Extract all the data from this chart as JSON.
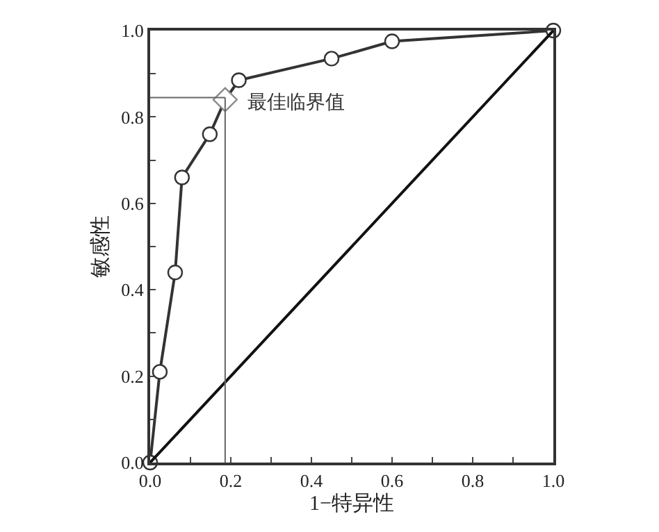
{
  "chart_data": {
    "type": "line",
    "xlabel": "1−特异性",
    "ylabel": "敏感性",
    "xlim": [
      0,
      1
    ],
    "ylim": [
      0,
      1
    ],
    "xticks": [
      {
        "value": 0,
        "label": "0.0"
      },
      {
        "value": 0.1,
        "label": null
      },
      0.2,
      {
        "value": 0.3,
        "label": null
      },
      0.4,
      {
        "value": 0.5,
        "label": null
      },
      0.6,
      {
        "value": 0.7,
        "label": null
      },
      0.8,
      {
        "value": 0.9,
        "label": null
      },
      {
        "value": 1,
        "label": "1.0"
      }
    ],
    "yticks": [
      {
        "value": 0,
        "label": "0.0"
      },
      {
        "value": 0.1,
        "label": null
      },
      0.2,
      {
        "value": 0.3,
        "label": null
      },
      0.4,
      {
        "value": 0.5,
        "label": null
      },
      0.6,
      {
        "value": 0.7,
        "label": null
      },
      0.8,
      {
        "value": 0.9,
        "label": null
      },
      {
        "value": 1,
        "label": "1.0"
      }
    ],
    "series": [
      {
        "color": "#333333",
        "marker": "circle",
        "x": [
          0,
          0.024,
          0.062,
          0.079,
          0.148,
          0.186,
          0.22,
          0.45,
          0.6,
          1
        ],
        "values": [
          0,
          0.21,
          0.44,
          0.66,
          0.76,
          0.84,
          0.885,
          0.935,
          0.975,
          1
        ]
      },
      {
        "type": "scatter",
        "color": "#888888",
        "marker": "diamond",
        "x": [
          0.186
        ],
        "values": [
          0.84
        ]
      },
      {
        "type": "line",
        "color": "#111111",
        "marker": "none",
        "x": [
          0,
          1
        ],
        "values": [
          0,
          1
        ]
      }
    ],
    "ref_lines": [
      {
        "axis": "x",
        "value": 0.186,
        "color": "#666666"
      },
      {
        "axis": "y",
        "value": 0.845,
        "color": "#666666"
      }
    ],
    "annotations": [
      {
        "text": "最佳临界值",
        "x": 0.186,
        "y": 0.84
      }
    ],
    "grid": false
  }
}
